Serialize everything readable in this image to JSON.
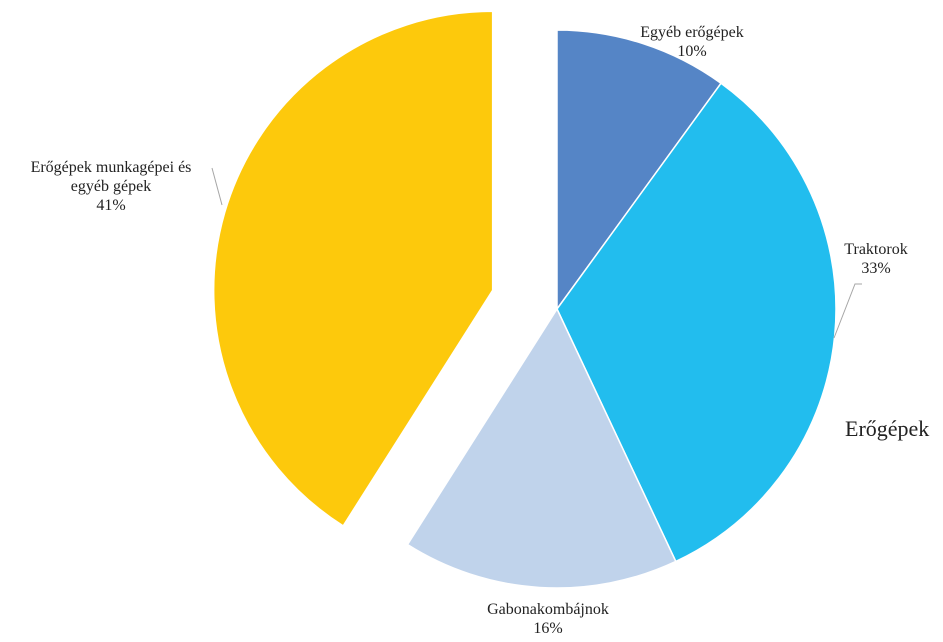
{
  "chart_data": {
    "type": "pie",
    "title": "",
    "annotation": "Erőgépek",
    "slices": [
      {
        "label_lines": [
          "Egyéb erőgépek"
        ],
        "value": 10,
        "value_label": "10%",
        "color": "#5585C6",
        "exploded": false
      },
      {
        "label_lines": [
          "Traktorok"
        ],
        "value": 33,
        "value_label": "33%",
        "color": "#22BDEE",
        "exploded": false
      },
      {
        "label_lines": [
          "Gabonakombájnok"
        ],
        "value": 16,
        "value_label": "16%",
        "color": "#C0D3EB",
        "exploded": false
      },
      {
        "label_lines": [
          "Erőgépek munkagépei és",
          "egyéb gépek"
        ],
        "value": 41,
        "value_label": "41%",
        "color": "#FDC90C",
        "exploded": true
      }
    ],
    "legend": "none",
    "data_labels": "outside"
  }
}
